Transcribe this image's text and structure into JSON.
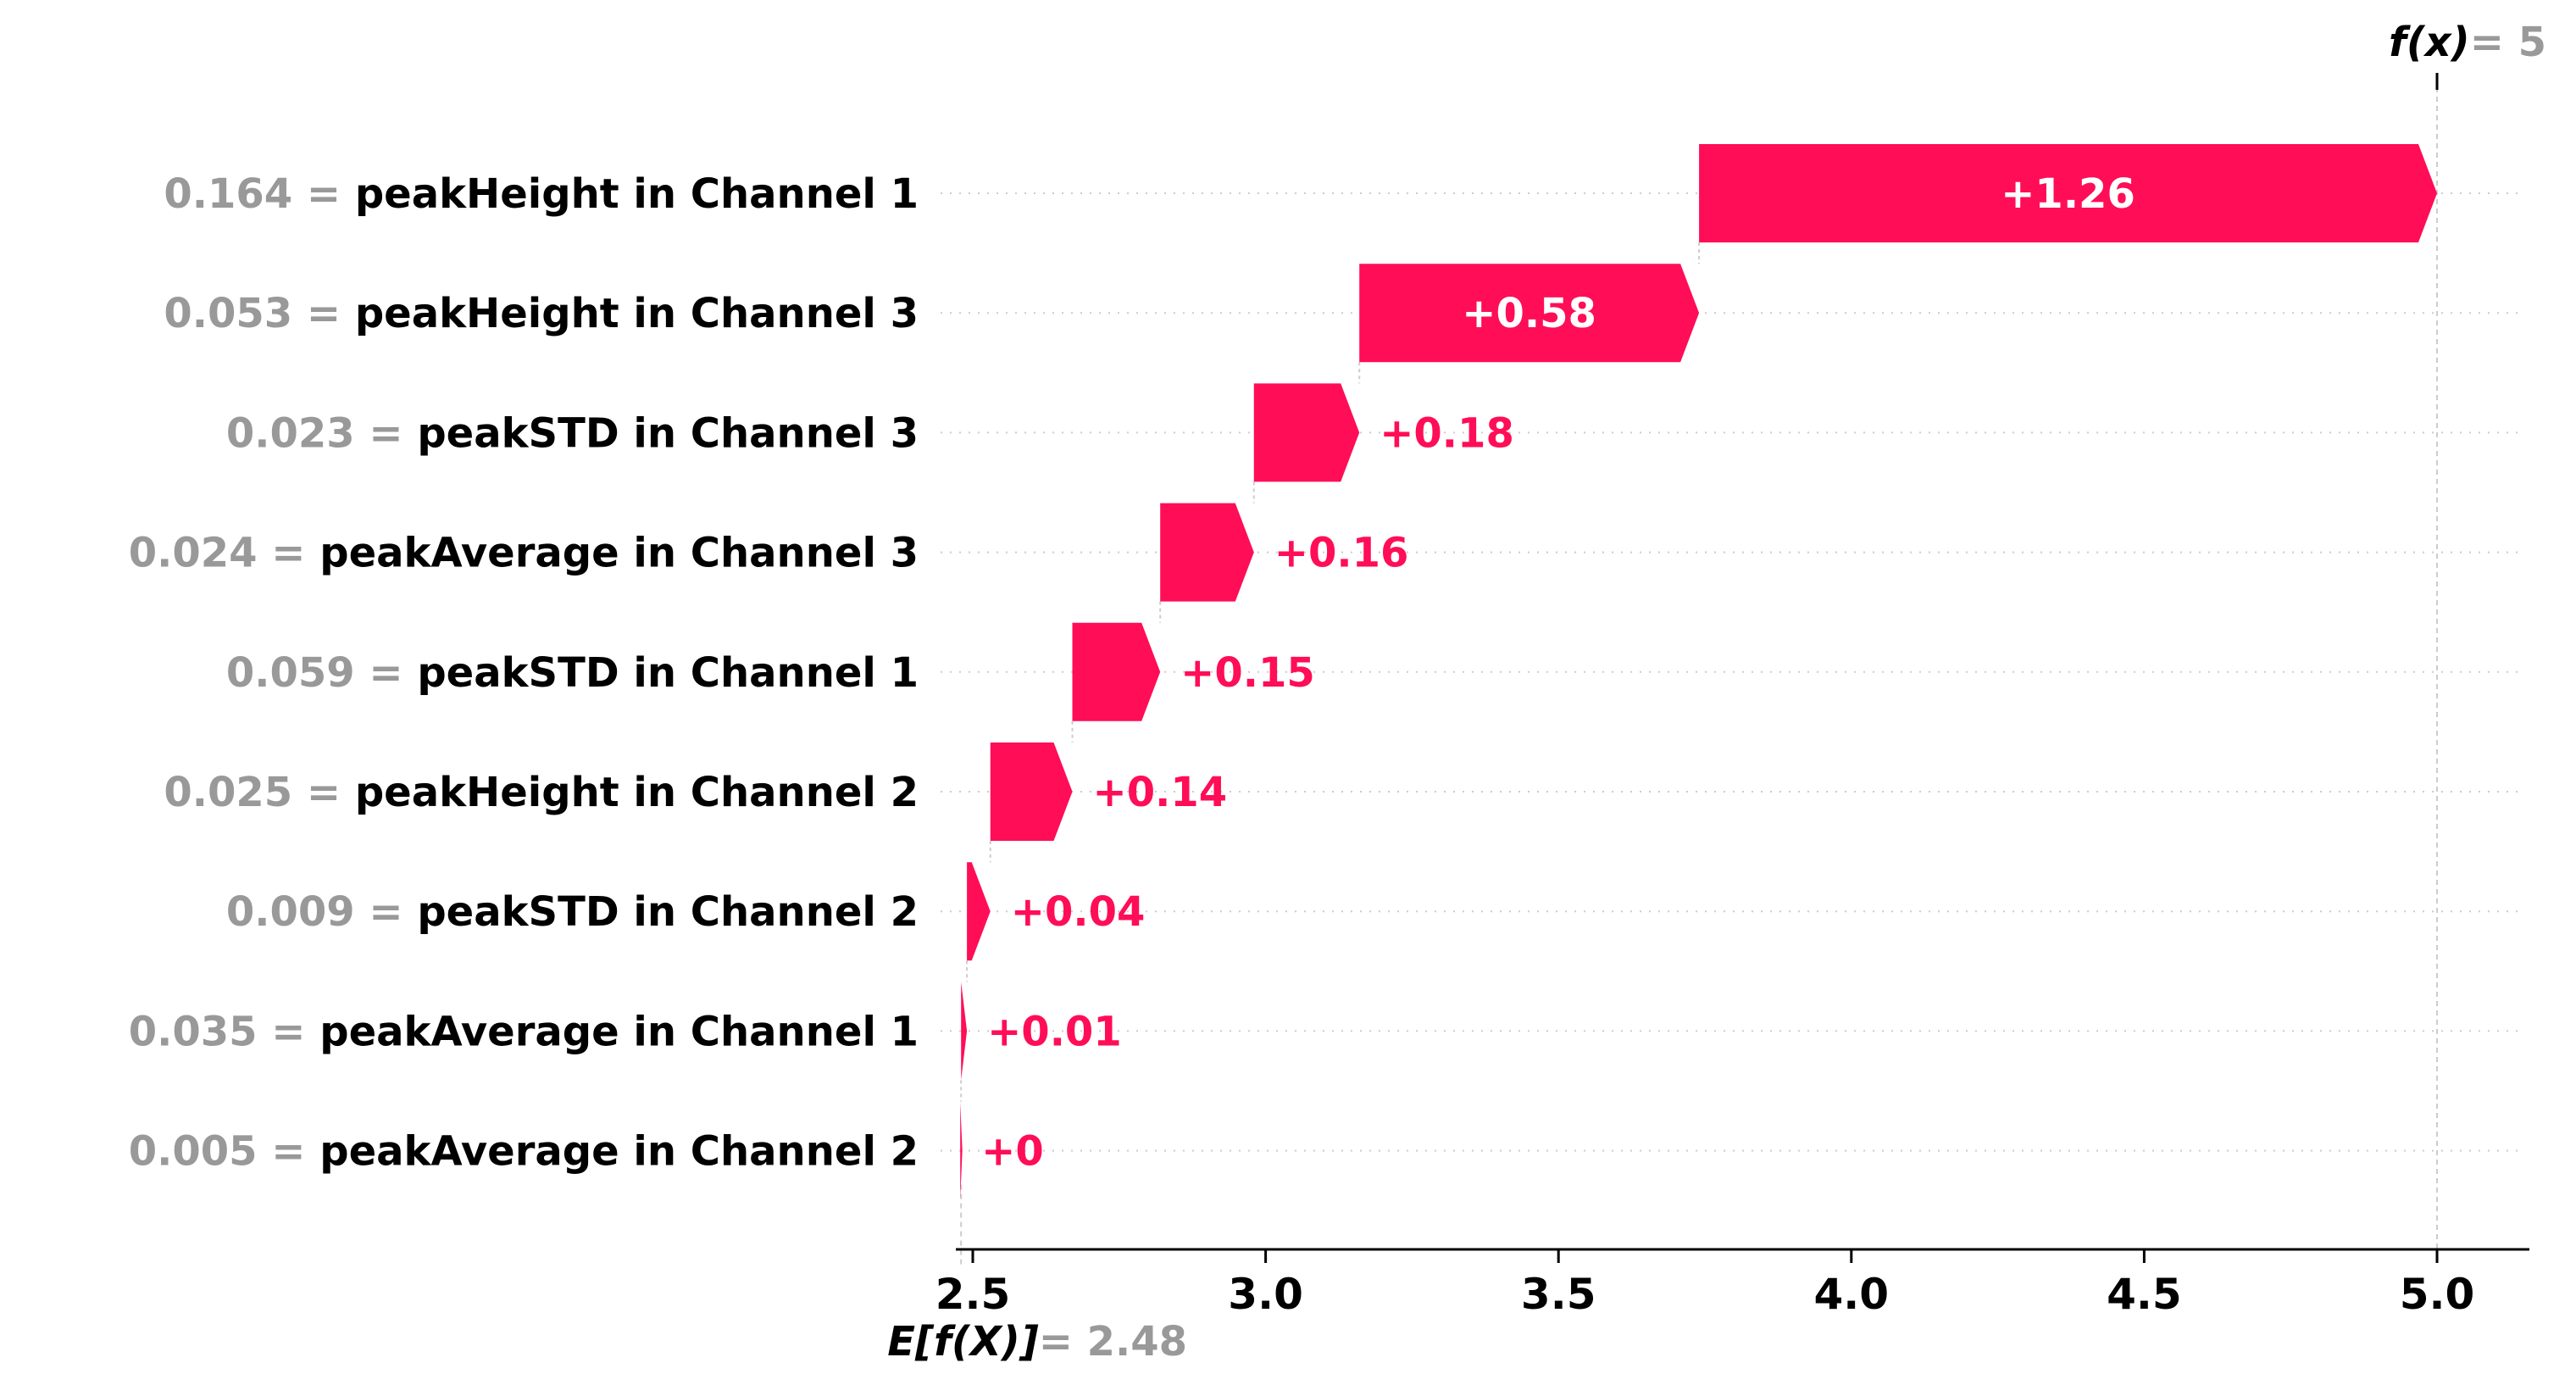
{
  "chart_data": {
    "type": "waterfall",
    "base_value": 2.48,
    "base_label": "E[f(X)]",
    "base_value_text": "= 2.48",
    "output_value": 5,
    "output_label": "f(x)",
    "output_value_text": "= 5",
    "xlim": [
      2.45,
      5.15
    ],
    "xticks": [
      2.5,
      3.0,
      3.5,
      4.0,
      4.5,
      5.0
    ],
    "xtick_labels": [
      "2.5",
      "3.0",
      "3.5",
      "4.0",
      "4.5",
      "5.0"
    ],
    "features": [
      {
        "value_text": "0.164 =",
        "name": "peakHeight in Channel 1",
        "contribution": 1.26,
        "label": "+1.26"
      },
      {
        "value_text": "0.053 =",
        "name": "peakHeight in Channel 3",
        "contribution": 0.58,
        "label": "+0.58"
      },
      {
        "value_text": "0.023 =",
        "name": "peakSTD in Channel 3",
        "contribution": 0.18,
        "label": "+0.18"
      },
      {
        "value_text": "0.024 =",
        "name": "peakAverage in Channel 3",
        "contribution": 0.16,
        "label": "+0.16"
      },
      {
        "value_text": "0.059 =",
        "name": "peakSTD in Channel 1",
        "contribution": 0.15,
        "label": "+0.15"
      },
      {
        "value_text": "0.025 =",
        "name": "peakHeight in Channel 2",
        "contribution": 0.14,
        "label": "+0.14"
      },
      {
        "value_text": "0.009 =",
        "name": "peakSTD in Channel 2",
        "contribution": 0.04,
        "label": "+0.04"
      },
      {
        "value_text": "0.035 =",
        "name": "peakAverage in Channel 1",
        "contribution": 0.01,
        "label": "+0.01"
      },
      {
        "value_text": "0.005 =",
        "name": "peakAverage in Channel 2",
        "contribution": 0.0,
        "label": "+0"
      }
    ],
    "colors": {
      "positive": "#ff0d57",
      "bar_label_inside": "#ffffff",
      "feature_value": "#999999",
      "feature_name": "#000000",
      "grid": "#cccccc"
    }
  }
}
